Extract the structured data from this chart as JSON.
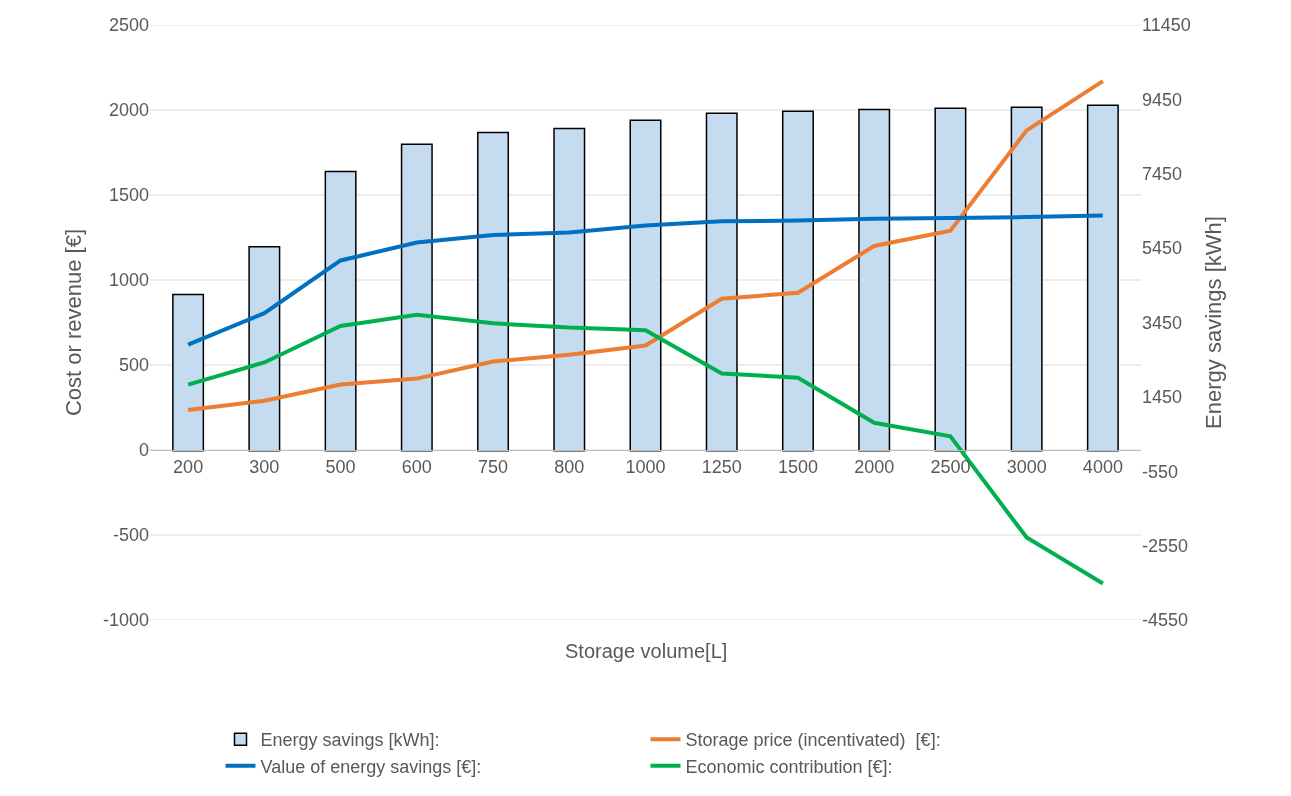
{
  "chart_data": {
    "type": "bar",
    "xlabel": "Storage volume[L]",
    "ylabel": "Cost or revenue [€]",
    "y2label": "Energy savings [kWh]",
    "categories": [
      "200",
      "300",
      "500",
      "600",
      "750",
      "800",
      "1000",
      "1250",
      "1500",
      "2000",
      "2500",
      "3000",
      "4000"
    ],
    "series": [
      {
        "name": "Energy savings [kWh]:",
        "axis": "y2",
        "color": "#c5dbf0",
        "values": [
          4200,
          5490,
          7510,
          8240,
          8560,
          8670,
          8890,
          9080,
          9130,
          9180,
          9210,
          9240,
          9290
        ]
      },
      {
        "name": "Storage price (incentivated)  [€]:",
        "type": "line",
        "color": "#ed7d31",
        "values": [
          235,
          290,
          385,
          420,
          520,
          560,
          615,
          890,
          925,
          1200,
          1290,
          1880,
          2170
        ]
      },
      {
        "name": "Value of energy savings [€]:",
        "type": "line",
        "color": "#0070c0",
        "values": [
          620,
          805,
          1115,
          1220,
          1265,
          1280,
          1320,
          1345,
          1350,
          1360,
          1365,
          1370,
          1380
        ]
      },
      {
        "name": "Economic contribution [€]:",
        "type": "line",
        "color": "#00b050",
        "values": [
          385,
          515,
          730,
          795,
          745,
          720,
          705,
          450,
          425,
          160,
          80,
          -515,
          -785
        ]
      }
    ],
    "ylim": [
      -1000,
      2500
    ],
    "yticks": [
      -1000,
      -500,
      0,
      500,
      1000,
      1500,
      2000,
      2500
    ],
    "y2lim": [
      -4550,
      11450
    ],
    "y2ticks": [
      -4550,
      -2550,
      -550,
      1450,
      3450,
      5450,
      7450,
      9450,
      11450
    ],
    "grid": "y",
    "legend": "bottom",
    "marker": "none",
    "line_style": "solid"
  }
}
